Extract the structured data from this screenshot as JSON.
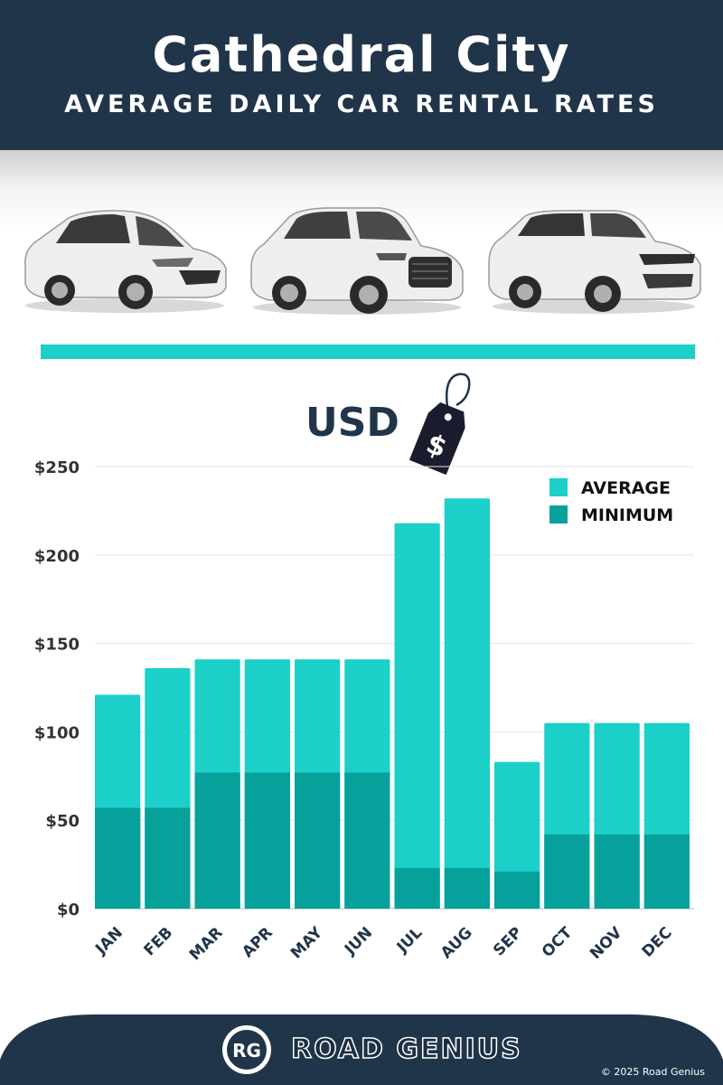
{
  "header": {
    "title": "Cathedral City",
    "subtitle": "AVERAGE DAILY CAR RENTAL RATES"
  },
  "currency_label": "USD",
  "price_tag_symbol": "$",
  "brand": {
    "logo_text": "RG",
    "name": "ROAD GENIUS",
    "copyright": "© 2025 Road Genius"
  },
  "colors": {
    "header_bg": "#21354a",
    "average": "#1ccfc9",
    "minimum": "#06a19b",
    "axis_text": "#333333",
    "month_text": "#21354a"
  },
  "icons": [
    "car-hatchback-icon",
    "car-suv-icon",
    "car-luxury-suv-icon",
    "price-tag-icon",
    "road-genius-logo"
  ],
  "chart_data": {
    "type": "bar",
    "categories": [
      "JAN",
      "FEB",
      "MAR",
      "APR",
      "MAY",
      "JUN",
      "JUL",
      "AUG",
      "SEP",
      "OCT",
      "NOV",
      "DEC"
    ],
    "series": [
      {
        "name": "AVERAGE",
        "values": [
          121,
          136,
          141,
          141,
          141,
          141,
          218,
          232,
          83,
          105,
          105,
          105
        ]
      },
      {
        "name": "MINIMUM",
        "values": [
          57,
          57,
          77,
          77,
          77,
          77,
          23,
          23,
          21,
          42,
          42,
          42
        ]
      }
    ],
    "y_ticks": [
      "$0",
      "$50",
      "$100",
      "$150",
      "$200",
      "$250"
    ],
    "ylim": [
      0,
      250
    ],
    "grid": true,
    "legend": "top-right",
    "overlay": true
  }
}
